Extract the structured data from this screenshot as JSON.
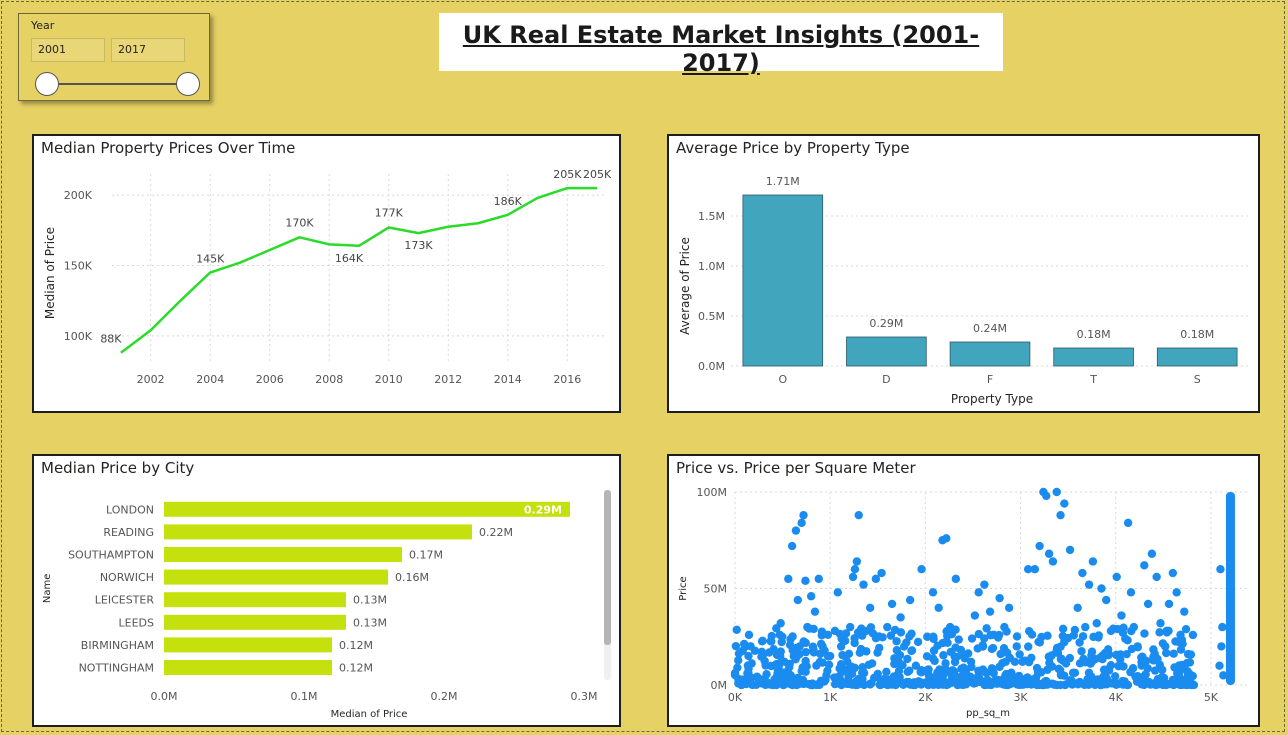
{
  "slicer": {
    "title": "Year",
    "start": "2001",
    "end": "2017"
  },
  "page_title": "UK Real Estate Market Insights (2001-2017)",
  "chart_data": [
    {
      "type": "line",
      "title": "Median Property Prices Over Time",
      "xlabel": "",
      "ylabel": "Median of Price",
      "x": [
        2001,
        2002,
        2003,
        2004,
        2005,
        2006,
        2007,
        2008,
        2009,
        2010,
        2011,
        2012,
        2013,
        2014,
        2015,
        2016,
        2017
      ],
      "y": [
        88000,
        104000,
        125000,
        145000,
        152000,
        161000,
        170000,
        165000,
        164000,
        177000,
        173000,
        177500,
        180000,
        186000,
        198000,
        205000,
        205000
      ],
      "point_labels": [
        {
          "x": 2001,
          "label": "88K"
        },
        {
          "x": 2004,
          "label": "145K"
        },
        {
          "x": 2007,
          "label": "170K"
        },
        {
          "x": 2009,
          "label": "164K"
        },
        {
          "x": 2010,
          "label": "177K"
        },
        {
          "x": 2011,
          "label": "173K"
        },
        {
          "x": 2014,
          "label": "186K"
        },
        {
          "x": 2016,
          "label": "205K"
        },
        {
          "x": 2017,
          "label": "205K"
        }
      ],
      "x_ticks": [
        "2002",
        "2004",
        "2006",
        "2008",
        "2010",
        "2012",
        "2014",
        "2016"
      ],
      "y_ticks": [
        "100K",
        "150K",
        "200K"
      ],
      "ylim": [
        80000,
        215000
      ],
      "xlim": [
        2000.7,
        2017.3
      ],
      "grid": true,
      "color": "#2ADB2A"
    },
    {
      "type": "bar",
      "title": "Average Price by Property Type",
      "xlabel": "Property Type",
      "ylabel": "Average of Price",
      "categories": [
        "O",
        "D",
        "F",
        "T",
        "S"
      ],
      "values": [
        1.71,
        0.29,
        0.24,
        0.18,
        0.18
      ],
      "value_labels": [
        "1.71M",
        "0.29M",
        "0.24M",
        "0.18M",
        "0.18M"
      ],
      "y_ticks": [
        "0.0M",
        "0.5M",
        "1.0M",
        "1.5M"
      ],
      "ylim": [
        0,
        1.8
      ],
      "grid": true,
      "color": "#41A5BD"
    },
    {
      "type": "bar",
      "orientation": "horizontal",
      "title": "Median Price by City",
      "xlabel": "Median of Price",
      "ylabel": "Name",
      "categories": [
        "LONDON",
        "READING",
        "SOUTHAMPTON",
        "NORWICH",
        "LEICESTER",
        "LEEDS",
        "BIRMINGHAM",
        "NOTTINGHAM"
      ],
      "values": [
        0.29,
        0.22,
        0.17,
        0.16,
        0.13,
        0.13,
        0.12,
        0.12
      ],
      "value_labels": [
        "0.29M",
        "0.22M",
        "0.17M",
        "0.16M",
        "0.13M",
        "0.13M",
        "0.12M",
        "0.12M"
      ],
      "x_ticks": [
        "0.0M",
        "0.1M",
        "0.2M",
        "0.3M"
      ],
      "xlim": [
        0,
        0.3
      ],
      "color": "#C4E10E"
    },
    {
      "type": "scatter",
      "title": "Price vs. Price per Square Meter",
      "xlabel": "pp_sq_m",
      "ylabel": "Price",
      "x_ticks": [
        "0K",
        "1K",
        "2K",
        "3K",
        "4K",
        "5K"
      ],
      "y_ticks": [
        "0M",
        "50M",
        "100M"
      ],
      "xlim": [
        0,
        5400
      ],
      "ylim": [
        0,
        100
      ],
      "grid": true,
      "color": "#1A8CF0",
      "points": [
        [
          450,
          8
        ],
        [
          470,
          26
        ],
        [
          480,
          32
        ],
        [
          520,
          12
        ],
        [
          560,
          55
        ],
        [
          600,
          72
        ],
        [
          640,
          80
        ],
        [
          660,
          44
        ],
        [
          680,
          20
        ],
        [
          700,
          84
        ],
        [
          720,
          88
        ],
        [
          740,
          54
        ],
        [
          760,
          30
        ],
        [
          800,
          46
        ],
        [
          840,
          38
        ],
        [
          880,
          55
        ],
        [
          920,
          20
        ],
        [
          960,
          5
        ],
        [
          1000,
          15
        ],
        [
          1050,
          28
        ],
        [
          1080,
          48
        ],
        [
          1120,
          24
        ],
        [
          1180,
          12
        ],
        [
          1210,
          30
        ],
        [
          1240,
          56
        ],
        [
          1260,
          60
        ],
        [
          1280,
          64
        ],
        [
          1300,
          88
        ],
        [
          1350,
          52
        ],
        [
          1380,
          28
        ],
        [
          1420,
          40
        ],
        [
          1480,
          55
        ],
        [
          1540,
          58
        ],
        [
          1600,
          30
        ],
        [
          1650,
          42
        ],
        [
          1700,
          18
        ],
        [
          1740,
          35
        ],
        [
          1800,
          22
        ],
        [
          1840,
          44
        ],
        [
          1900,
          10
        ],
        [
          1960,
          60
        ],
        [
          2020,
          25
        ],
        [
          2080,
          48
        ],
        [
          2140,
          40
        ],
        [
          2180,
          75
        ],
        [
          2220,
          76
        ],
        [
          2260,
          30
        ],
        [
          2320,
          55
        ],
        [
          2400,
          15
        ],
        [
          2480,
          12
        ],
        [
          2520,
          36
        ],
        [
          2560,
          48
        ],
        [
          2620,
          52
        ],
        [
          2680,
          38
        ],
        [
          2720,
          26
        ],
        [
          2780,
          45
        ],
        [
          2830,
          30
        ],
        [
          2880,
          40
        ],
        [
          2960,
          20
        ],
        [
          3020,
          12
        ],
        [
          3080,
          60
        ],
        [
          3150,
          60
        ],
        [
          3200,
          72
        ],
        [
          3240,
          100
        ],
        [
          3270,
          98
        ],
        [
          3300,
          68
        ],
        [
          3340,
          64
        ],
        [
          3380,
          100
        ],
        [
          3420,
          88
        ],
        [
          3460,
          94
        ],
        [
          3520,
          70
        ],
        [
          3600,
          40
        ],
        [
          3650,
          58
        ],
        [
          3680,
          30
        ],
        [
          3720,
          52
        ],
        [
          3760,
          64
        ],
        [
          3800,
          32
        ],
        [
          3850,
          50
        ],
        [
          3900,
          44
        ],
        [
          3950,
          28
        ],
        [
          4010,
          56
        ],
        [
          4060,
          36
        ],
        [
          4100,
          24
        ],
        [
          4130,
          84
        ],
        [
          4160,
          48
        ],
        [
          4190,
          30
        ],
        [
          4230,
          20
        ],
        [
          4270,
          12
        ],
        [
          4300,
          62
        ],
        [
          4340,
          42
        ],
        [
          4380,
          68
        ],
        [
          4430,
          56
        ],
        [
          4470,
          32
        ],
        [
          4520,
          20
        ],
        [
          4560,
          42
        ],
        [
          4600,
          58
        ],
        [
          4640,
          48
        ],
        [
          4680,
          26
        ],
        [
          4720,
          38
        ],
        [
          4760,
          16
        ]
      ]
    }
  ]
}
